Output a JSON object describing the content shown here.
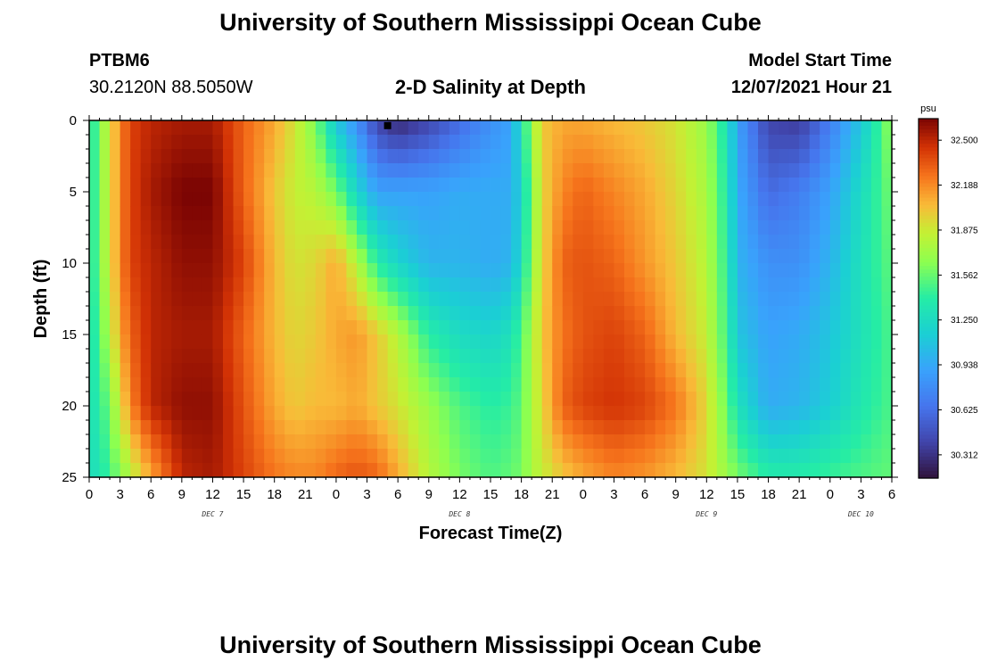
{
  "header": {
    "title": "University of Southern Mississippi Ocean Cube",
    "station": "PTBM6",
    "coords": "30.2120N  88.5050W",
    "plot_title": "2-D Salinity at Depth",
    "model_start_label": "Model Start Time",
    "model_start_value": "12/07/2021 Hour 21"
  },
  "footer": {
    "title": "University of Southern Mississippi Ocean Cube"
  },
  "chart_data": {
    "type": "heatmap",
    "title": "2-D Salinity at Depth",
    "xlabel": "Forecast Time(Z)",
    "ylabel": "Depth (ft)",
    "x_unit": "hours (Z)",
    "x_range_hours_from_dec7_0z": [
      0,
      78
    ],
    "ylim": [
      0,
      25
    ],
    "y_inverted": true,
    "y_ticks": [
      0,
      5,
      10,
      15,
      20,
      25
    ],
    "x_tick_labels": [
      "0",
      "3",
      "6",
      "9",
      "12",
      "15",
      "18",
      "21",
      "0",
      "3",
      "6",
      "9",
      "12",
      "15",
      "18",
      "21",
      "0",
      "3",
      "6",
      "9",
      "12",
      "15",
      "18",
      "21",
      "0",
      "3",
      "6"
    ],
    "day_labels": [
      {
        "label": "DEC 7",
        "at_hour": 12
      },
      {
        "label": "DEC 8",
        "at_hour": 36
      },
      {
        "label": "DEC 9",
        "at_hour": 60
      },
      {
        "label": "DEC 10",
        "at_hour": 75
      }
    ],
    "colorbar": {
      "unit": "psu",
      "min": 30.15,
      "max": 32.65,
      "tick_values": [
        32.5,
        32.188,
        31.875,
        31.562,
        31.25,
        30.938,
        30.625,
        30.312
      ],
      "tick_labels": [
        "32.500",
        "32.188",
        "31.875",
        "31.562",
        "31.250",
        "30.938",
        "30.625",
        "30.312"
      ]
    },
    "marker": {
      "hour": 29,
      "depth": 0.3
    },
    "depth_levels": [
      0,
      5,
      10,
      15,
      20,
      25
    ],
    "columns": [
      {
        "hour": 0,
        "values": [
          31.3,
          31.3,
          31.3,
          31.3,
          31.3,
          31.3
        ]
      },
      {
        "hour": 1,
        "values": [
          31.6,
          31.6,
          31.6,
          31.5,
          31.4,
          31.3
        ]
      },
      {
        "hour": 2,
        "values": [
          31.9,
          31.9,
          31.9,
          31.8,
          31.6,
          31.5
        ]
      },
      {
        "hour": 3,
        "values": [
          32.2,
          32.2,
          32.2,
          32.1,
          31.9,
          31.6
        ]
      },
      {
        "hour": 4,
        "values": [
          32.4,
          32.4,
          32.4,
          32.3,
          32.2,
          31.8
        ]
      },
      {
        "hour": 6,
        "values": [
          32.5,
          32.55,
          32.5,
          32.5,
          32.5,
          32.1
        ]
      },
      {
        "hour": 9,
        "values": [
          32.55,
          32.65,
          32.6,
          32.55,
          32.6,
          32.5
        ]
      },
      {
        "hour": 12,
        "values": [
          32.55,
          32.65,
          32.6,
          32.55,
          32.6,
          32.55
        ]
      },
      {
        "hour": 15,
        "values": [
          32.3,
          32.3,
          32.4,
          32.3,
          32.35,
          32.4
        ]
      },
      {
        "hour": 18,
        "values": [
          32.1,
          32.0,
          32.05,
          32.05,
          32.1,
          32.25
        ]
      },
      {
        "hour": 20,
        "values": [
          31.9,
          31.85,
          31.9,
          31.95,
          32.0,
          32.2
        ]
      },
      {
        "hour": 22,
        "values": [
          31.6,
          31.8,
          31.95,
          32.0,
          32.05,
          32.2
        ]
      },
      {
        "hour": 24,
        "values": [
          31.1,
          31.6,
          32.1,
          32.1,
          32.05,
          32.3
        ]
      },
      {
        "hour": 26,
        "values": [
          30.8,
          31.2,
          31.8,
          32.15,
          32.1,
          32.35
        ]
      },
      {
        "hour": 28,
        "values": [
          30.4,
          30.9,
          31.4,
          32.0,
          32.0,
          32.3
        ]
      },
      {
        "hour": 30,
        "values": [
          30.25,
          30.9,
          31.2,
          31.8,
          31.9,
          32.1
        ]
      },
      {
        "hour": 33,
        "values": [
          30.4,
          30.9,
          31.0,
          31.4,
          31.7,
          31.8
        ]
      },
      {
        "hour": 36,
        "values": [
          30.6,
          30.95,
          31.0,
          31.25,
          31.5,
          31.6
        ]
      },
      {
        "hour": 39,
        "values": [
          30.8,
          30.95,
          30.95,
          31.2,
          31.4,
          31.5
        ]
      },
      {
        "hour": 41,
        "values": [
          30.9,
          30.95,
          31.0,
          31.3,
          31.45,
          31.55
        ]
      },
      {
        "hour": 42,
        "values": [
          31.3,
          31.2,
          31.25,
          31.5,
          31.55,
          31.6
        ]
      },
      {
        "hour": 43,
        "values": [
          31.7,
          31.6,
          31.65,
          31.75,
          31.75,
          31.75
        ]
      },
      {
        "hour": 44,
        "values": [
          32.0,
          31.95,
          31.95,
          32.0,
          31.95,
          31.85
        ]
      },
      {
        "hour": 46,
        "values": [
          32.1,
          32.2,
          32.3,
          32.25,
          32.3,
          32.0
        ]
      },
      {
        "hour": 48,
        "values": [
          32.1,
          32.3,
          32.35,
          32.35,
          32.4,
          32.1
        ]
      },
      {
        "hour": 51,
        "values": [
          32.05,
          32.2,
          32.3,
          32.4,
          32.45,
          32.2
        ]
      },
      {
        "hour": 54,
        "values": [
          32.0,
          32.1,
          32.15,
          32.3,
          32.4,
          32.15
        ]
      },
      {
        "hour": 57,
        "values": [
          31.9,
          31.95,
          32.0,
          32.05,
          32.25,
          32.05
        ]
      },
      {
        "hour": 60,
        "values": [
          31.7,
          31.75,
          31.8,
          31.85,
          31.95,
          31.9
        ]
      },
      {
        "hour": 62,
        "values": [
          31.3,
          31.35,
          31.4,
          31.45,
          31.55,
          31.7
        ]
      },
      {
        "hour": 63,
        "values": [
          30.9,
          30.95,
          31.0,
          31.1,
          31.3,
          31.6
        ]
      },
      {
        "hour": 66,
        "values": [
          30.4,
          30.6,
          30.8,
          30.9,
          30.95,
          31.4
        ]
      },
      {
        "hour": 69,
        "values": [
          30.35,
          30.7,
          30.8,
          30.95,
          31.0,
          31.4
        ]
      },
      {
        "hour": 72,
        "values": [
          30.7,
          30.9,
          31.0,
          31.1,
          31.15,
          31.45
        ]
      },
      {
        "hour": 75,
        "values": [
          31.1,
          31.25,
          31.3,
          31.3,
          31.35,
          31.5
        ]
      },
      {
        "hour": 78,
        "values": [
          31.7,
          31.6,
          31.55,
          31.5,
          31.5,
          31.55
        ]
      }
    ]
  }
}
